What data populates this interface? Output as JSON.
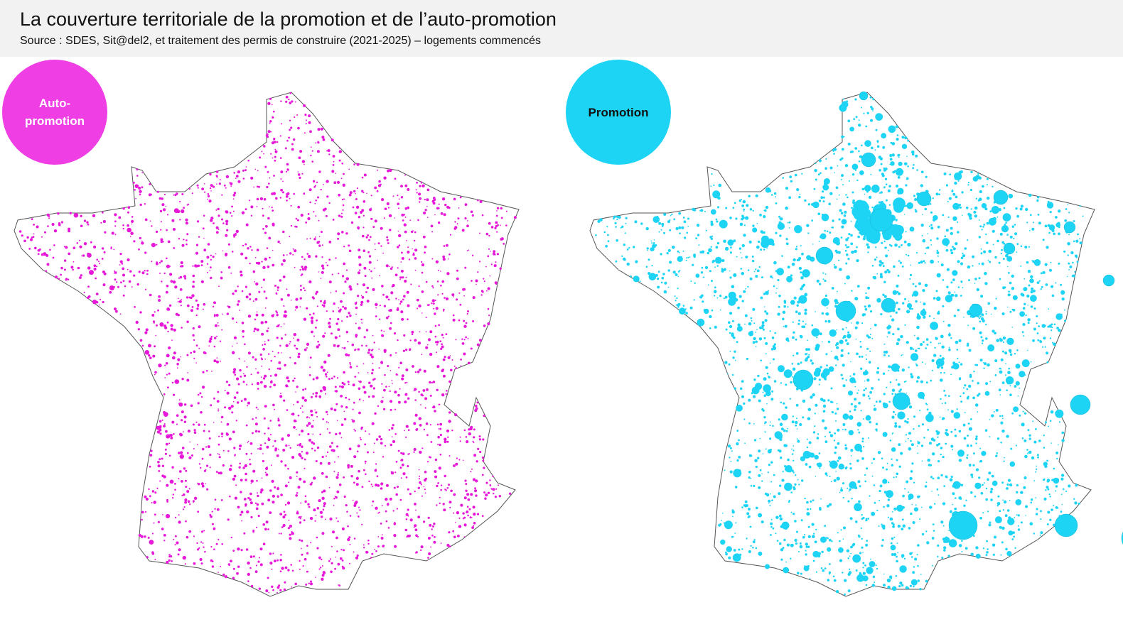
{
  "header": {
    "title": "La couverture territoriale de la promotion et de l’auto-promotion",
    "source": "Source : SDES, Sit@del2, et traitement des permis de construire (2021-2025) – logements commencés"
  },
  "maps": [
    {
      "label": "Auto-promotion"
    },
    {
      "label": "Promotion"
    }
  ]
}
